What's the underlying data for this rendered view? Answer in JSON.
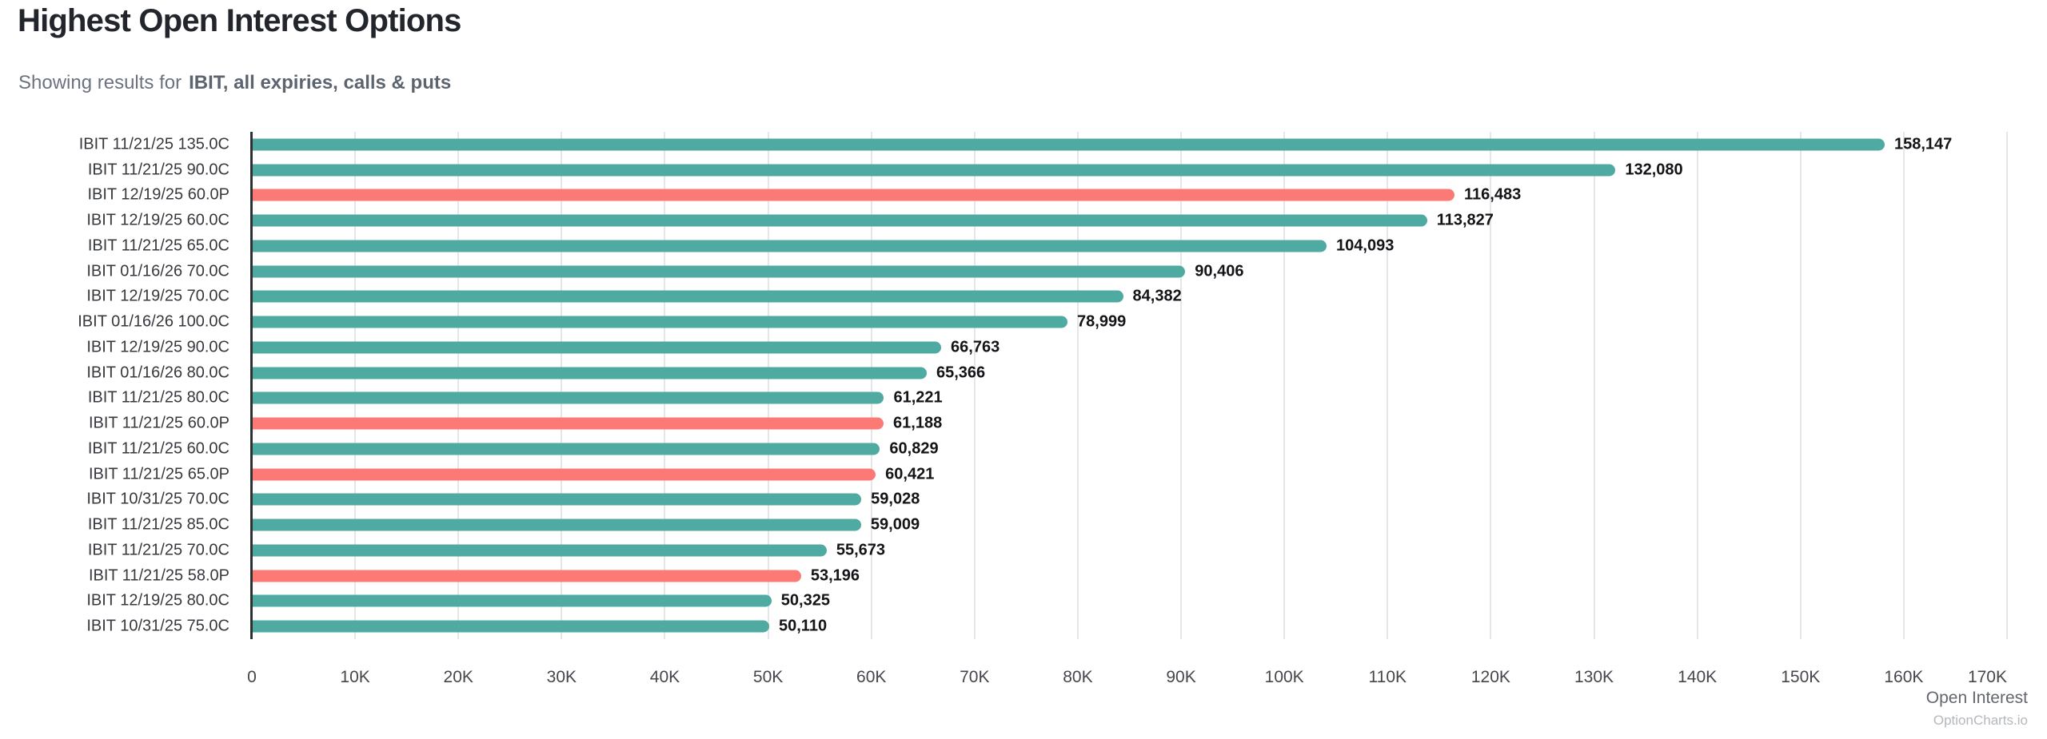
{
  "header": {
    "title": "Highest Open Interest Options",
    "subtitle_prefix": "Showing results for",
    "subtitle_bold": "IBIT, all expiries, calls & puts"
  },
  "chart_data": {
    "type": "bar",
    "orientation": "horizontal",
    "title": "Highest Open Interest Options",
    "xlabel": "Open Interest",
    "ylabel": "",
    "xlim": [
      0,
      170000
    ],
    "grid": true,
    "categories": [
      "IBIT 11/21/25 135.0C",
      "IBIT 11/21/25 90.0C",
      "IBIT 12/19/25 60.0P",
      "IBIT 12/19/25 60.0C",
      "IBIT 11/21/25 65.0C",
      "IBIT 01/16/26 70.0C",
      "IBIT 12/19/25 70.0C",
      "IBIT 01/16/26 100.0C",
      "IBIT 12/19/25 90.0C",
      "IBIT 01/16/26 80.0C",
      "IBIT 11/21/25 80.0C",
      "IBIT 11/21/25 60.0P",
      "IBIT 11/21/25 60.0C",
      "IBIT 11/21/25 65.0P",
      "IBIT 10/31/25 70.0C",
      "IBIT 11/21/25 85.0C",
      "IBIT 11/21/25 70.0C",
      "IBIT 11/21/25 58.0P",
      "IBIT 12/19/25 80.0C",
      "IBIT 10/31/25 75.0C"
    ],
    "values": [
      158147,
      132080,
      116483,
      113827,
      104093,
      90406,
      84382,
      78999,
      66763,
      65366,
      61221,
      61188,
      60829,
      60421,
      59028,
      59009,
      55673,
      53196,
      50325,
      50110
    ],
    "value_labels": [
      "158,147",
      "132,080",
      "116,483",
      "113,827",
      "104,093",
      "90,406",
      "84,382",
      "78,999",
      "66,763",
      "65,366",
      "61,221",
      "61,188",
      "60,829",
      "60,421",
      "59,028",
      "59,009",
      "55,673",
      "53,196",
      "50,325",
      "50,110"
    ],
    "option_types": [
      "call",
      "call",
      "put",
      "call",
      "call",
      "call",
      "call",
      "call",
      "call",
      "call",
      "call",
      "put",
      "call",
      "put",
      "call",
      "call",
      "call",
      "put",
      "call",
      "call"
    ],
    "x_ticks": [
      {
        "value": 0,
        "label": "0"
      },
      {
        "value": 10000,
        "label": "10K"
      },
      {
        "value": 20000,
        "label": "20K"
      },
      {
        "value": 30000,
        "label": "30K"
      },
      {
        "value": 40000,
        "label": "40K"
      },
      {
        "value": 50000,
        "label": "50K"
      },
      {
        "value": 60000,
        "label": "60K"
      },
      {
        "value": 70000,
        "label": "70K"
      },
      {
        "value": 80000,
        "label": "80K"
      },
      {
        "value": 90000,
        "label": "90K"
      },
      {
        "value": 100000,
        "label": "100K"
      },
      {
        "value": 110000,
        "label": "110K"
      },
      {
        "value": 120000,
        "label": "120K"
      },
      {
        "value": 130000,
        "label": "130K"
      },
      {
        "value": 140000,
        "label": "140K"
      },
      {
        "value": 150000,
        "label": "150K"
      },
      {
        "value": 160000,
        "label": "160K"
      },
      {
        "value": 170000,
        "label": "170K"
      }
    ],
    "colors": {
      "call": "#4faaa1",
      "put": "#fc7a76",
      "grid": "#e5e6e8",
      "axis": "#2d2f31"
    },
    "legend": null
  },
  "footer": {
    "x_axis_title": "Open Interest",
    "watermark": "OptionCharts.io"
  }
}
